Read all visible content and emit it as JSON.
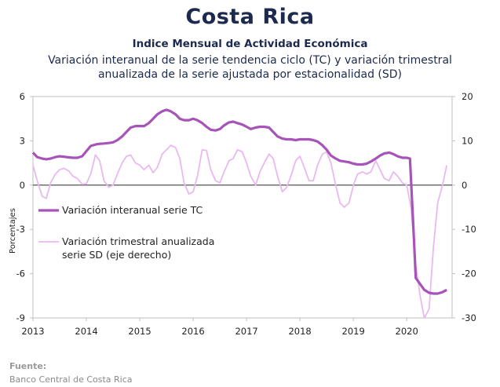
{
  "header": {
    "title": "Costa Rica",
    "subtitle": "Indice Mensual de  Actividad Económica",
    "description_line1": "Variación interanual de la serie tendencia ciclo (TC) y variación trimestral",
    "description_line2": "anualizada de la serie ajustada por estacionalidad (SD)"
  },
  "source": {
    "label": "Fuente:",
    "text": "Banco Central de Costa Rica"
  },
  "colors": {
    "tc": "#a654b8",
    "sd": "#eab8f0",
    "axis": "#bfbfbf",
    "zero": "#404040"
  },
  "chart_data": {
    "type": "line",
    "title": "Indice Mensual de  Actividad Económica",
    "ylabel": "Porcentajes",
    "ylim": [
      -9,
      6
    ],
    "y2lim": [
      -30,
      20
    ],
    "yticks": [
      "6",
      "3",
      "0",
      "-3",
      "-6",
      "-9"
    ],
    "y2ticks": [
      "20",
      "10",
      "0",
      "-10",
      "-20",
      "-30"
    ],
    "x_ticks": [
      "2013",
      "2014",
      "2015",
      "2016",
      "2017",
      "2018",
      "2019",
      "2020"
    ],
    "x_range": [
      2013.0,
      2020.85
    ],
    "grid": false,
    "legend": "inside-left",
    "series": [
      {
        "name": "Variación interanual serie TC",
        "axis": "left",
        "x": [
          2013.0,
          2013.08,
          2013.17,
          2013.25,
          2013.33,
          2013.42,
          2013.5,
          2013.58,
          2013.67,
          2013.75,
          2013.83,
          2013.92,
          2014.0,
          2014.08,
          2014.17,
          2014.25,
          2014.33,
          2014.42,
          2014.5,
          2014.58,
          2014.67,
          2014.75,
          2014.83,
          2014.92,
          2015.0,
          2015.08,
          2015.17,
          2015.25,
          2015.33,
          2015.42,
          2015.5,
          2015.58,
          2015.67,
          2015.75,
          2015.83,
          2015.92,
          2016.0,
          2016.08,
          2016.17,
          2016.25,
          2016.33,
          2016.42,
          2016.5,
          2016.58,
          2016.67,
          2016.75,
          2016.83,
          2016.92,
          2017.0,
          2017.08,
          2017.17,
          2017.25,
          2017.33,
          2017.42,
          2017.5,
          2017.58,
          2017.67,
          2017.75,
          2017.83,
          2017.92,
          2018.0,
          2018.08,
          2018.17,
          2018.25,
          2018.33,
          2018.42,
          2018.5,
          2018.58,
          2018.67,
          2018.75,
          2018.83,
          2018.92,
          2019.0,
          2019.08,
          2019.17,
          2019.25,
          2019.33,
          2019.42,
          2019.5,
          2019.58,
          2019.67,
          2019.75,
          2019.83,
          2019.92,
          2020.0,
          2020.06,
          2020.12,
          2020.17,
          2020.25,
          2020.33,
          2020.42,
          2020.5,
          2020.58,
          2020.67,
          2020.75
        ],
        "values": [
          2.2,
          1.9,
          1.8,
          1.75,
          1.8,
          1.9,
          1.95,
          1.92,
          1.88,
          1.85,
          1.85,
          1.95,
          2.3,
          2.65,
          2.75,
          2.8,
          2.82,
          2.85,
          2.9,
          3.05,
          3.3,
          3.6,
          3.9,
          4.0,
          4.0,
          4.0,
          4.2,
          4.5,
          4.8,
          5.0,
          5.1,
          5.0,
          4.8,
          4.5,
          4.4,
          4.4,
          4.5,
          4.4,
          4.2,
          3.95,
          3.75,
          3.7,
          3.8,
          4.05,
          4.25,
          4.3,
          4.2,
          4.1,
          3.95,
          3.8,
          3.9,
          3.95,
          3.95,
          3.9,
          3.6,
          3.3,
          3.15,
          3.1,
          3.1,
          3.05,
          3.1,
          3.1,
          3.1,
          3.05,
          2.95,
          2.7,
          2.4,
          2.0,
          1.8,
          1.65,
          1.6,
          1.55,
          1.45,
          1.4,
          1.4,
          1.45,
          1.6,
          1.8,
          2.0,
          2.15,
          2.2,
          2.1,
          1.95,
          1.85,
          1.85,
          1.8,
          -2.5,
          -6.3,
          -6.7,
          -7.1,
          -7.3,
          -7.35,
          -7.35,
          -7.25,
          -7.1
        ]
      },
      {
        "name": "Variación trimestral anualizada serie SD (eje derecho)",
        "axis": "right",
        "x": [
          2013.0,
          2013.08,
          2013.17,
          2013.25,
          2013.33,
          2013.42,
          2013.5,
          2013.58,
          2013.67,
          2013.75,
          2013.83,
          2013.92,
          2014.0,
          2014.08,
          2014.17,
          2014.25,
          2014.33,
          2014.42,
          2014.5,
          2014.58,
          2014.67,
          2014.75,
          2014.83,
          2014.92,
          2015.0,
          2015.08,
          2015.17,
          2015.25,
          2015.33,
          2015.42,
          2015.5,
          2015.58,
          2015.67,
          2015.75,
          2015.83,
          2015.92,
          2016.0,
          2016.08,
          2016.17,
          2016.25,
          2016.33,
          2016.42,
          2016.5,
          2016.58,
          2016.67,
          2016.75,
          2016.83,
          2016.92,
          2017.0,
          2017.08,
          2017.17,
          2017.25,
          2017.33,
          2017.42,
          2017.5,
          2017.58,
          2017.67,
          2017.75,
          2017.83,
          2017.92,
          2018.0,
          2018.08,
          2018.17,
          2018.25,
          2018.33,
          2018.42,
          2018.5,
          2018.58,
          2018.67,
          2018.75,
          2018.83,
          2018.92,
          2019.0,
          2019.08,
          2019.17,
          2019.25,
          2019.33,
          2019.42,
          2019.5,
          2019.58,
          2019.67,
          2019.75,
          2019.83,
          2019.92,
          2020.0,
          2020.08,
          2020.17,
          2020.25,
          2020.33,
          2020.42,
          2020.5,
          2020.58,
          2020.67,
          2020.75
        ],
        "values": [
          4.5,
          1.0,
          -2.5,
          -3.0,
          0.5,
          2.5,
          3.5,
          3.8,
          3.2,
          2.0,
          1.5,
          0.2,
          0.3,
          2.5,
          6.8,
          5.5,
          1.0,
          -0.5,
          0.0,
          2.5,
          5.0,
          6.5,
          6.8,
          5.0,
          4.5,
          3.5,
          4.5,
          2.8,
          4.0,
          7.0,
          8.0,
          9.0,
          8.5,
          6.0,
          0.5,
          -2.0,
          -1.5,
          2.0,
          8.0,
          7.8,
          3.5,
          1.0,
          0.5,
          3.0,
          5.5,
          6.0,
          8.0,
          7.5,
          5.0,
          2.0,
          0.0,
          3.0,
          5.0,
          7.0,
          6.0,
          2.0,
          -1.5,
          -0.5,
          2.0,
          5.5,
          6.5,
          4.0,
          1.0,
          1.0,
          4.5,
          7.0,
          7.5,
          5.0,
          0.0,
          -4.0,
          -5.0,
          -4.0,
          0.0,
          2.5,
          3.0,
          2.5,
          3.0,
          5.5,
          3.5,
          1.5,
          1.0,
          3.0,
          2.0,
          0.5,
          0.0,
          -5.0,
          -18.0,
          -25.0,
          -30.0,
          -28.0,
          -14.0,
          -4.0,
          0.0,
          4.5
        ]
      }
    ]
  }
}
